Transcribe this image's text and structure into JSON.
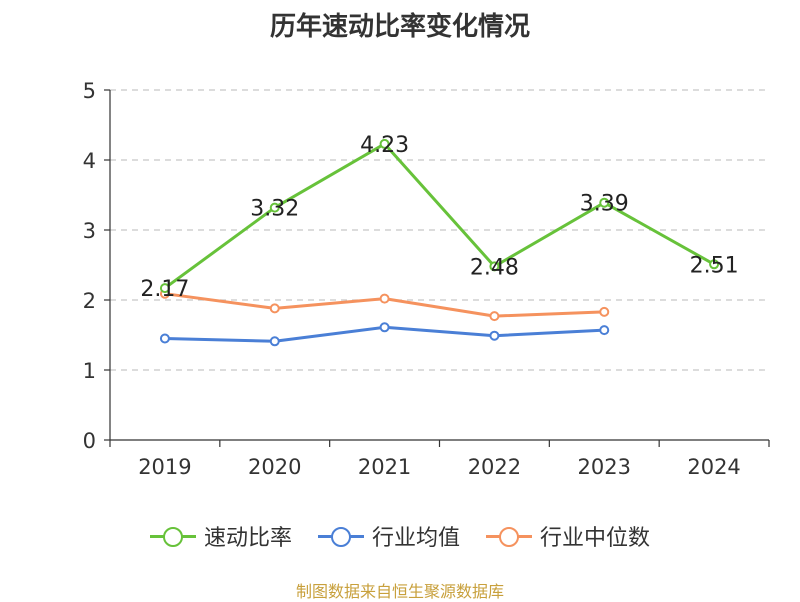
{
  "chart_data": {
    "type": "line",
    "title": "历年速动比率变化情况",
    "categories": [
      "2019",
      "2020",
      "2021",
      "2022",
      "2023",
      "2024"
    ],
    "ylim": [
      0,
      5
    ],
    "yticks": [
      0,
      1,
      2,
      3,
      4,
      5
    ],
    "grid": true,
    "series": [
      {
        "name": "速动比率",
        "color": "#67c23a",
        "values": [
          2.17,
          3.32,
          4.23,
          2.48,
          3.39,
          2.51
        ],
        "labels": [
          "2.17",
          "3.32",
          "4.23",
          "2.48",
          "3.39",
          "2.51"
        ]
      },
      {
        "name": "行业均值",
        "color": "#4a7fd6",
        "values": [
          1.45,
          1.41,
          1.61,
          1.49,
          1.57,
          null
        ]
      },
      {
        "name": "行业中位数",
        "color": "#f5925e",
        "values": [
          2.09,
          1.88,
          2.02,
          1.77,
          1.83,
          null
        ]
      }
    ],
    "legend_position": "bottom"
  },
  "source": "制图数据来自恒生聚源数据库"
}
